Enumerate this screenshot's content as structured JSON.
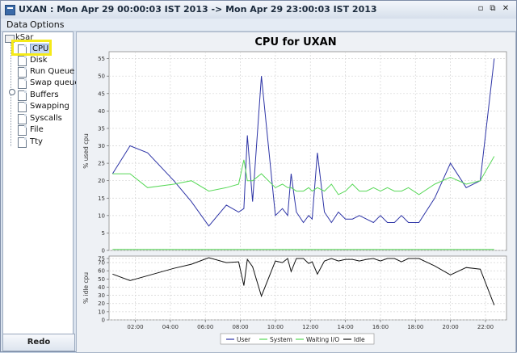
{
  "window": {
    "title": "UXAN : Mon Apr 29 00:00:03 IST 2013  -> Mon Apr 29 23:00:03 IST 2013",
    "controls": [
      "minimize",
      "restore",
      "close"
    ]
  },
  "menu": {
    "items": [
      "Data",
      "Options"
    ]
  },
  "tree": {
    "root": "kSar",
    "items": [
      "CPU",
      "Disk",
      "Run Queue",
      "Swap queue",
      "Buffers",
      "Swapping",
      "Syscalls",
      "File",
      "Tty"
    ],
    "selected": "CPU"
  },
  "redo_label": "Redo",
  "chart_data": {
    "title": "CPU for UXAN",
    "type": "line",
    "x_ticks": [
      "02:00",
      "04:00",
      "06:00",
      "08:00",
      "10:00",
      "12:00",
      "14:00",
      "16:00",
      "18:00",
      "20:00",
      "22:00"
    ],
    "x_range_hours": [
      0.5,
      23.2
    ],
    "top": {
      "ylabel": "% used cpu",
      "ylim": [
        0,
        57
      ],
      "yticks": [
        0,
        5,
        10,
        15,
        20,
        25,
        30,
        35,
        40,
        45,
        50,
        55
      ],
      "series": [
        {
          "name": "User",
          "color": "#2d34a6",
          "x": [
            0.7,
            1.7,
            2.7,
            4.2,
            5.2,
            6.2,
            7.2,
            7.9,
            8.2,
            8.4,
            8.7,
            9.2,
            10.0,
            10.4,
            10.7,
            10.9,
            11.2,
            11.6,
            11.9,
            12.1,
            12.4,
            12.8,
            13.2,
            13.6,
            14.0,
            14.4,
            14.8,
            15.2,
            15.6,
            16.0,
            16.4,
            16.8,
            17.2,
            17.6,
            18.2,
            19.1,
            20.0,
            20.9,
            21.7,
            22.5
          ],
          "y": [
            22,
            30,
            28,
            20,
            14,
            7,
            13,
            11,
            12,
            33,
            14,
            50,
            10,
            12,
            10,
            22,
            11,
            8,
            10,
            9,
            28,
            11,
            8,
            11,
            9,
            9,
            10,
            9,
            8,
            10,
            8,
            8,
            10,
            8,
            8,
            15,
            25,
            18,
            20,
            55
          ]
        },
        {
          "name": "System",
          "color": "#58d858",
          "x": [
            0.7,
            22.5
          ],
          "y": [
            0.3,
            0.3
          ]
        },
        {
          "name": "Waiting I/O",
          "color": "#58d858",
          "x": [
            0.7,
            1.7,
            2.7,
            4.2,
            5.2,
            6.2,
            7.2,
            7.9,
            8.2,
            8.4,
            8.7,
            9.2,
            10.0,
            10.4,
            10.7,
            10.9,
            11.2,
            11.6,
            11.9,
            12.1,
            12.4,
            12.8,
            13.2,
            13.6,
            14.0,
            14.4,
            14.8,
            15.2,
            15.6,
            16.0,
            16.4,
            16.8,
            17.2,
            17.6,
            18.2,
            19.1,
            20.0,
            20.9,
            21.7,
            22.5
          ],
          "y": [
            22,
            22,
            18,
            19,
            20,
            17,
            18,
            19,
            26,
            20,
            20,
            22,
            18,
            19,
            18,
            18,
            17,
            17,
            18,
            17,
            18,
            17,
            19,
            16,
            17,
            19,
            17,
            17,
            18,
            17,
            18,
            17,
            17,
            18,
            16,
            19,
            21,
            19,
            20,
            27
          ]
        }
      ]
    },
    "bottom": {
      "ylabel": "% idle cpu",
      "ylim": [
        0,
        78
      ],
      "yticks": [
        0,
        10,
        20,
        30,
        40,
        50,
        60,
        70,
        75
      ],
      "series": [
        {
          "name": "Idle",
          "color": "#111111",
          "x": [
            0.7,
            1.7,
            2.7,
            4.2,
            5.2,
            6.2,
            7.2,
            7.9,
            8.2,
            8.4,
            8.7,
            9.2,
            10.0,
            10.4,
            10.7,
            10.9,
            11.2,
            11.6,
            11.9,
            12.1,
            12.4,
            12.8,
            13.2,
            13.6,
            14.0,
            14.4,
            14.8,
            15.2,
            15.6,
            16.0,
            16.4,
            16.8,
            17.2,
            17.6,
            18.2,
            19.1,
            20.0,
            20.9,
            21.7,
            22.5
          ],
          "y": [
            56,
            48,
            54,
            63,
            68,
            76,
            70,
            71,
            42,
            74,
            65,
            29,
            72,
            70,
            75,
            59,
            75,
            75,
            69,
            71,
            56,
            72,
            75,
            72,
            74,
            74,
            72,
            74,
            75,
            72,
            75,
            75,
            71,
            75,
            75,
            66,
            55,
            64,
            62,
            18
          ]
        }
      ]
    },
    "legend": [
      "User",
      "System",
      "Waiting I/O",
      "Idle"
    ],
    "legend_colors": [
      "#2d34a6",
      "#58d858",
      "#58d858",
      "#111111"
    ]
  }
}
